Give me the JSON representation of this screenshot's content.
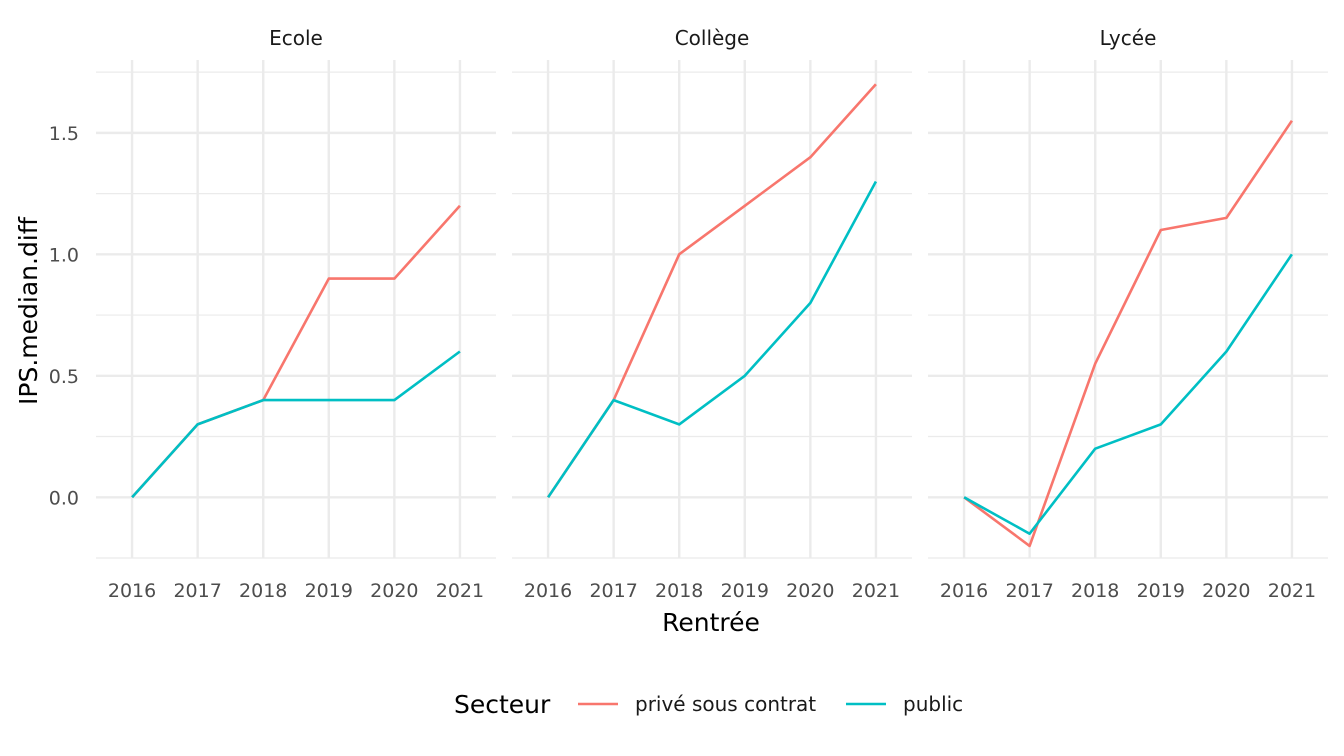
{
  "chart_data": {
    "type": "line",
    "title": "",
    "xlabel": "Rentrée",
    "ylabel": "IPS.median.diff",
    "x": [
      2016,
      2017,
      2018,
      2019,
      2020,
      2021
    ],
    "x_tick_labels": [
      "2016",
      "2017",
      "2018",
      "2019",
      "2020",
      "2021"
    ],
    "y_ticks": [
      0.0,
      0.5,
      1.0,
      1.5
    ],
    "y_tick_labels": [
      "0.0",
      "0.5",
      "1.0",
      "1.5"
    ],
    "ylim": [
      -0.25,
      1.8
    ],
    "xlim": [
      2015.45,
      2021.55
    ],
    "grid": true,
    "legend": {
      "title": "Secteur",
      "position": "bottom",
      "entries": [
        {
          "name": "privé sous contrat",
          "color": "#F8766D"
        },
        {
          "name": "public",
          "color": "#00BFC4"
        }
      ]
    },
    "panels": [
      {
        "name": "Ecole",
        "series": [
          {
            "name": "privé sous contrat",
            "color": "#F8766D",
            "values": [
              0.0,
              0.3,
              0.4,
              0.9,
              0.9,
              1.2
            ]
          },
          {
            "name": "public",
            "color": "#00BFC4",
            "values": [
              0.0,
              0.3,
              0.4,
              0.4,
              0.4,
              0.6
            ]
          }
        ]
      },
      {
        "name": "Collège",
        "series": [
          {
            "name": "privé sous contrat",
            "color": "#F8766D",
            "values": [
              0.0,
              0.4,
              1.0,
              1.2,
              1.4,
              1.7
            ]
          },
          {
            "name": "public",
            "color": "#00BFC4",
            "values": [
              0.0,
              0.4,
              0.3,
              0.5,
              0.8,
              1.3
            ]
          }
        ]
      },
      {
        "name": "Lycée",
        "series": [
          {
            "name": "privé sous contrat",
            "color": "#F8766D",
            "values": [
              0.0,
              -0.2,
              0.55,
              1.1,
              1.15,
              1.55
            ]
          },
          {
            "name": "public",
            "color": "#00BFC4",
            "values": [
              0.0,
              -0.15,
              0.2,
              0.3,
              0.6,
              1.0
            ]
          }
        ]
      }
    ]
  }
}
